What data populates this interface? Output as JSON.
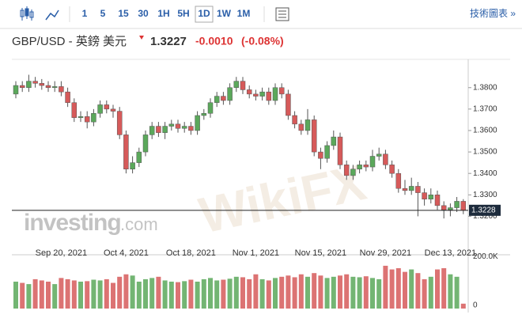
{
  "toolbar": {
    "intervals": [
      "1",
      "5",
      "15",
      "30",
      "1H",
      "5H",
      "1D",
      "1W",
      "1M"
    ],
    "active": "1D",
    "link": "技術圖表 »"
  },
  "header": {
    "symbol": "GBP/USD - 英鎊 美元",
    "price": "1.3227",
    "change": "-0.0010",
    "change_pct": "(-0.08%)"
  },
  "watermarks": {
    "brand": "investing",
    "brand_suffix": ".com",
    "overlay": "WikiFX"
  },
  "chart_data": {
    "type": "candlestick",
    "up_color": "#5ba85b",
    "down_color": "#d65a5a",
    "grid": false,
    "categories": [
      null,
      null,
      null,
      null,
      null,
      null,
      null,
      "Sep 20, 2021",
      null,
      null,
      null,
      null,
      null,
      null,
      null,
      null,
      null,
      "Oct 4, 2021",
      null,
      null,
      null,
      null,
      null,
      null,
      null,
      null,
      null,
      "Oct 18, 2021",
      null,
      null,
      null,
      null,
      null,
      null,
      null,
      null,
      null,
      "Nov 1, 2021",
      null,
      null,
      null,
      null,
      null,
      null,
      null,
      null,
      null,
      "Nov 15, 2021",
      null,
      null,
      null,
      null,
      null,
      null,
      null,
      null,
      null,
      "Nov 29, 2021",
      null,
      null,
      null,
      null,
      null,
      null,
      null,
      null,
      null,
      "Dec 13, 2021",
      null,
      null
    ],
    "open": [
      1.377,
      1.381,
      1.38,
      1.383,
      1.382,
      1.381,
      1.38,
      1.3805,
      1.378,
      1.373,
      1.366,
      1.3665,
      1.364,
      1.368,
      1.372,
      1.37,
      1.369,
      1.358,
      1.342,
      1.345,
      1.35,
      1.358,
      1.362,
      1.359,
      1.362,
      1.363,
      1.361,
      1.362,
      1.36,
      1.367,
      1.368,
      1.373,
      1.376,
      1.374,
      1.38,
      1.383,
      1.379,
      1.377,
      1.376,
      1.378,
      1.374,
      1.38,
      1.377,
      1.367,
      1.363,
      1.36,
      1.365,
      1.35,
      1.347,
      1.353,
      1.357,
      1.344,
      1.339,
      1.342,
      1.344,
      1.343,
      1.348,
      1.349,
      1.344,
      1.34,
      1.333,
      1.332,
      1.334,
      1.331,
      1.328,
      1.33,
      1.325,
      1.323,
      1.324,
      1.327
    ],
    "high": [
      1.383,
      1.383,
      1.386,
      1.385,
      1.384,
      1.383,
      1.383,
      1.383,
      1.38,
      1.375,
      1.369,
      1.369,
      1.37,
      1.374,
      1.374,
      1.372,
      1.371,
      1.36,
      1.348,
      1.352,
      1.36,
      1.364,
      1.364,
      1.364,
      1.365,
      1.365,
      1.364,
      1.364,
      1.369,
      1.37,
      1.375,
      1.378,
      1.378,
      1.382,
      1.385,
      1.385,
      1.381,
      1.379,
      1.38,
      1.38,
      1.382,
      1.382,
      1.379,
      1.369,
      1.365,
      1.37,
      1.367,
      1.352,
      1.355,
      1.36,
      1.359,
      1.346,
      1.344,
      1.346,
      1.346,
      1.351,
      1.352,
      1.351,
      1.346,
      1.342,
      1.337,
      1.338,
      1.336,
      1.333,
      1.333,
      1.332,
      1.327,
      1.326,
      1.329,
      1.328
    ],
    "low": [
      1.375,
      1.378,
      1.378,
      1.38,
      1.379,
      1.378,
      1.378,
      1.376,
      1.371,
      1.364,
      1.364,
      1.361,
      1.362,
      1.366,
      1.368,
      1.366,
      1.356,
      1.34,
      1.34,
      1.343,
      1.348,
      1.356,
      1.357,
      1.356,
      1.36,
      1.359,
      1.359,
      1.358,
      1.358,
      1.365,
      1.366,
      1.371,
      1.372,
      1.372,
      1.378,
      1.377,
      1.375,
      1.374,
      1.374,
      1.372,
      1.372,
      1.375,
      1.365,
      1.361,
      1.358,
      1.358,
      1.348,
      1.342,
      1.345,
      1.351,
      1.342,
      1.337,
      1.337,
      1.34,
      1.341,
      1.341,
      1.346,
      1.342,
      1.338,
      1.331,
      1.33,
      1.33,
      1.32,
      1.325,
      1.326,
      1.323,
      1.319,
      1.32,
      1.322,
      1.321
    ],
    "close": [
      1.381,
      1.38,
      1.383,
      1.382,
      1.381,
      1.38,
      1.3805,
      1.378,
      1.373,
      1.366,
      1.3665,
      1.364,
      1.368,
      1.372,
      1.37,
      1.369,
      1.358,
      1.342,
      1.345,
      1.35,
      1.358,
      1.362,
      1.359,
      1.362,
      1.363,
      1.361,
      1.362,
      1.36,
      1.367,
      1.368,
      1.373,
      1.376,
      1.374,
      1.38,
      1.383,
      1.379,
      1.377,
      1.376,
      1.378,
      1.374,
      1.38,
      1.377,
      1.367,
      1.363,
      1.36,
      1.365,
      1.35,
      1.347,
      1.353,
      1.357,
      1.344,
      1.339,
      1.342,
      1.344,
      1.343,
      1.348,
      1.349,
      1.344,
      1.34,
      1.333,
      1.332,
      1.334,
      1.331,
      1.328,
      1.33,
      1.325,
      1.323,
      1.324,
      1.327,
      1.3228
    ],
    "volume": [
      110000,
      105000,
      100000,
      120000,
      115000,
      110000,
      100000,
      125000,
      120000,
      115000,
      110000,
      112000,
      118000,
      115000,
      120000,
      105000,
      130000,
      140000,
      135000,
      110000,
      120000,
      125000,
      130000,
      115000,
      110000,
      108000,
      112000,
      118000,
      110000,
      120000,
      125000,
      115000,
      118000,
      122000,
      130000,
      128000,
      120000,
      140000,
      120000,
      115000,
      125000,
      130000,
      135000,
      128000,
      140000,
      130000,
      145000,
      135000,
      125000,
      130000,
      135000,
      140000,
      130000,
      128000,
      132000,
      125000,
      120000,
      175000,
      160000,
      165000,
      150000,
      160000,
      145000,
      120000,
      130000,
      160000,
      165000,
      140000,
      130000,
      20000
    ],
    "ylim": [
      1.3065,
      1.3895
    ],
    "yticks": [
      {
        "value": 1.32,
        "label": "1.3200"
      },
      {
        "value": 1.33,
        "label": "1.3300"
      },
      {
        "value": 1.34,
        "label": "1.3400"
      },
      {
        "value": 1.35,
        "label": "1.3500"
      },
      {
        "value": 1.36,
        "label": "1.3600"
      },
      {
        "value": 1.37,
        "label": "1.3700"
      },
      {
        "value": 1.38,
        "label": "1.3800"
      }
    ],
    "last_price": 1.3228,
    "volume_ylim": [
      0,
      220000
    ],
    "volume_ticks": [
      {
        "value": 0,
        "label": "0"
      },
      {
        "value": 200000,
        "label": "200.0K"
      }
    ]
  }
}
